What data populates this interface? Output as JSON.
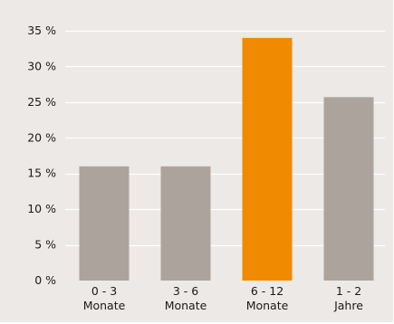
{
  "chart_data": {
    "type": "bar",
    "categories": [
      [
        "0 - 3",
        "Monate"
      ],
      [
        "3 - 6",
        "Monate"
      ],
      [
        "6 - 12",
        "Monate"
      ],
      [
        "1 - 2",
        "Jahre"
      ]
    ],
    "values": [
      16,
      16,
      34,
      25.7
    ],
    "colors": [
      "#aca49c",
      "#aca49c",
      "#f08a00",
      "#aca49c"
    ],
    "highlight_index": 2,
    "ylim": [
      0,
      35
    ],
    "yticks": [
      0,
      5,
      10,
      15,
      20,
      25,
      30,
      35
    ],
    "ytick_labels": [
      "0 %",
      "5 %",
      "10 %",
      "15 %",
      "20 %",
      "25 %",
      "30 %",
      "35 %"
    ],
    "ylabel": "",
    "xlabel": "",
    "title": "",
    "grid": "horizontal",
    "background": "#ede9e6",
    "grid_color": "#ffffff"
  }
}
